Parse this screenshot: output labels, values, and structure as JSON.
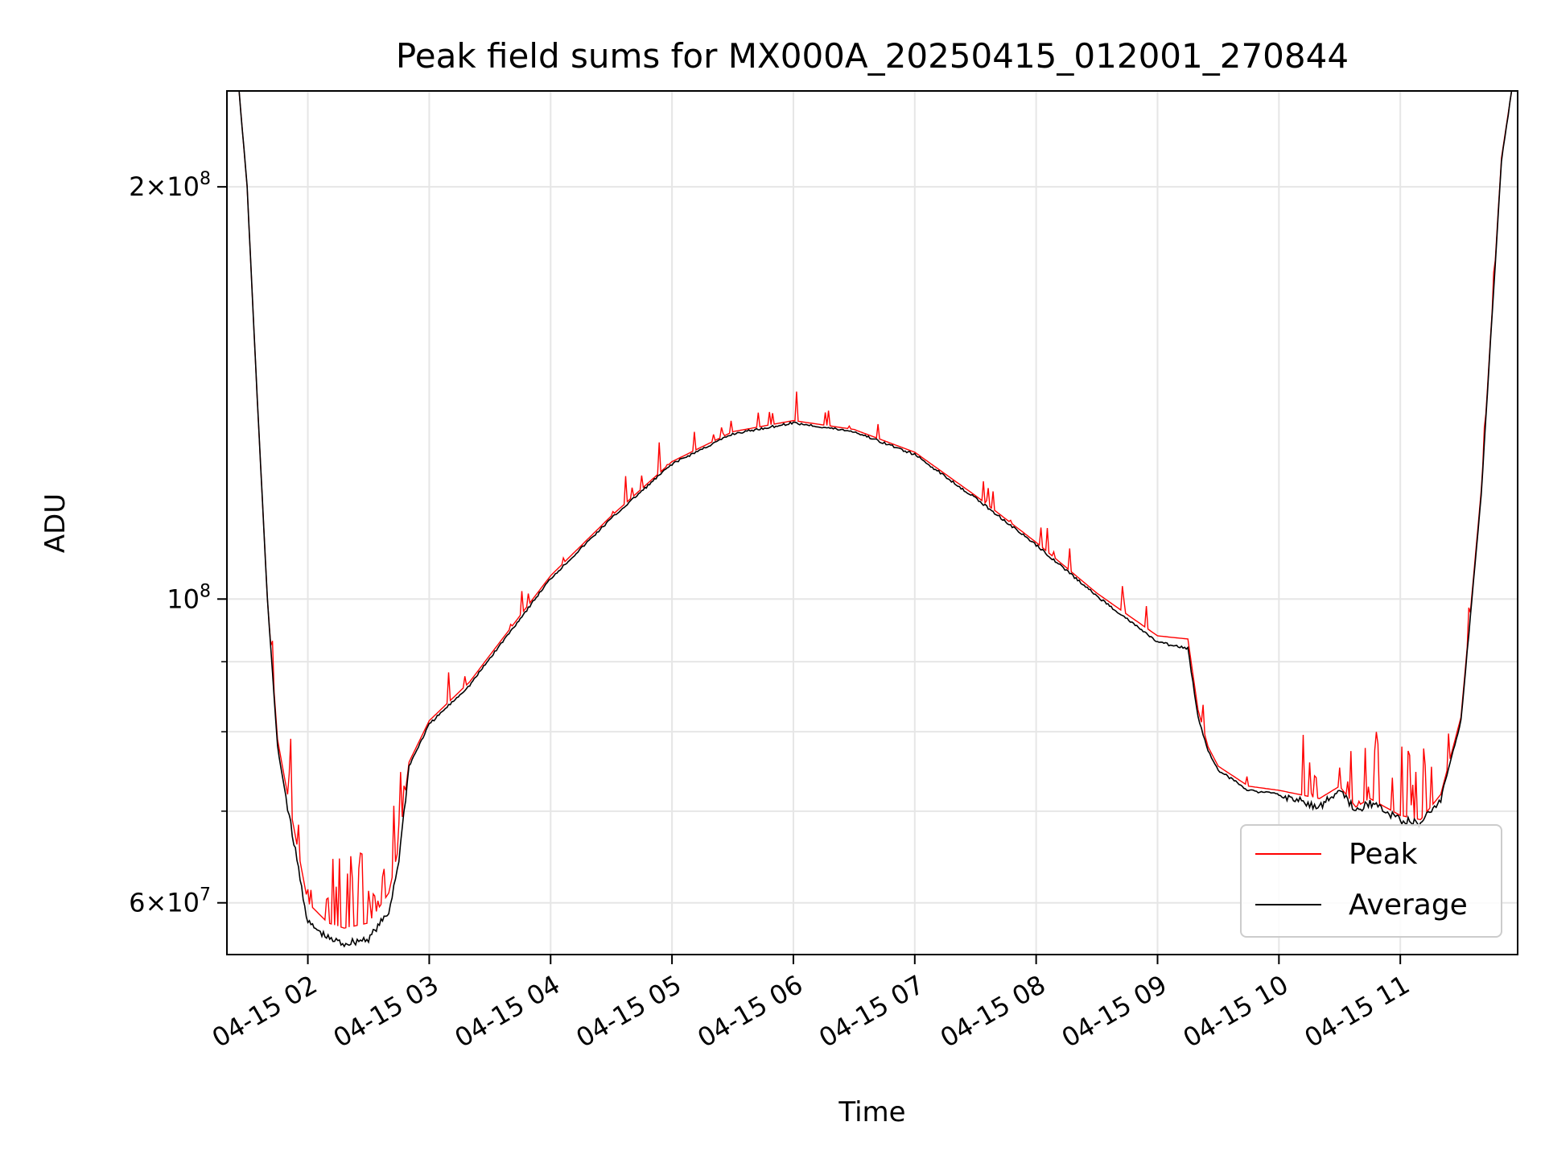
{
  "chart_data": {
    "type": "line",
    "title": "Peak field sums for MX000A_20250415_012001_270844",
    "xlabel": "Time",
    "ylabel": "ADU",
    "yscale": "log",
    "grid": true,
    "legend_position": "lower-right",
    "xlim": [
      "04-15 01:20",
      "04-15 11:58"
    ],
    "ylim": [
      55000000,
      235000000
    ],
    "x_ticks": [
      "04-15 02",
      "04-15 03",
      "04-15 04",
      "04-15 05",
      "04-15 06",
      "04-15 07",
      "04-15 08",
      "04-15 09",
      "04-15 10",
      "04-15 11"
    ],
    "y_tick_labels": [
      {
        "value": 200000000,
        "mantissa": "2",
        "exponent": "8"
      },
      {
        "value": 100000000,
        "mantissa": "",
        "exponent": "8"
      },
      {
        "value": 60000000,
        "mantissa": "6",
        "exponent": "7"
      }
    ],
    "y_minor_ticks": [
      70000000,
      80000000,
      90000000
    ],
    "series": [
      {
        "name": "Peak",
        "color": "#ff0000",
        "noise_note": "frequent upward spikes in low-signal regions",
        "x": [
          "04-15 01:26",
          "04-15 01:30",
          "04-15 01:35",
          "04-15 01:40",
          "04-15 01:45",
          "04-15 01:50",
          "04-15 02:00",
          "04-15 02:10",
          "04-15 02:18",
          "04-15 02:30",
          "04-15 02:40",
          "04-15 02:45",
          "04-15 02:50",
          "04-15 03:00",
          "04-15 03:20",
          "04-15 03:30",
          "04-15 04:00",
          "04-15 04:30",
          "04-15 05:00",
          "04-15 05:30",
          "04-15 06:00",
          "04-15 06:30",
          "04-15 07:00",
          "04-15 07:30",
          "04-15 08:00",
          "04-15 08:30",
          "04-15 09:00",
          "04-15 09:15",
          "04-15 09:20",
          "04-15 09:25",
          "04-15 09:30",
          "04-15 09:45",
          "04-15 10:00",
          "04-15 10:20",
          "04-15 10:30",
          "04-15 10:38",
          "04-15 10:45",
          "04-15 11:00",
          "04-15 11:10",
          "04-15 11:20",
          "04-15 11:30",
          "04-15 11:40",
          "04-15 11:50",
          "04-15 11:55"
        ],
        "values": [
          235000000,
          200000000,
          140000000,
          100000000,
          79000000,
          72000000,
          60000000,
          58000000,
          57500000,
          58000000,
          61000000,
          66000000,
          76000000,
          81500000,
          87000000,
          91000000,
          104000000,
          115000000,
          126000000,
          132500000,
          135000000,
          133000000,
          128000000,
          119000000,
          110000000,
          101000000,
          94000000,
          93500000,
          83000000,
          78000000,
          75500000,
          73000000,
          72500000,
          71500000,
          73000000,
          70500000,
          71500000,
          69500000,
          69000000,
          72000000,
          82000000,
          120000000,
          210000000,
          235000000
        ]
      },
      {
        "name": "Average",
        "color": "#000000",
        "x": [
          "04-15 01:26",
          "04-15 01:30",
          "04-15 01:35",
          "04-15 01:40",
          "04-15 01:45",
          "04-15 01:50",
          "04-15 02:00",
          "04-15 02:10",
          "04-15 02:18",
          "04-15 02:30",
          "04-15 02:40",
          "04-15 02:45",
          "04-15 02:50",
          "04-15 03:00",
          "04-15 03:20",
          "04-15 03:30",
          "04-15 04:00",
          "04-15 04:30",
          "04-15 05:00",
          "04-15 05:30",
          "04-15 06:00",
          "04-15 06:30",
          "04-15 07:00",
          "04-15 07:30",
          "04-15 08:00",
          "04-15 08:30",
          "04-15 09:00",
          "04-15 09:15",
          "04-15 09:20",
          "04-15 09:25",
          "04-15 09:30",
          "04-15 09:45",
          "04-15 10:00",
          "04-15 10:20",
          "04-15 10:30",
          "04-15 10:38",
          "04-15 10:45",
          "04-15 11:00",
          "04-15 11:10",
          "04-15 11:20",
          "04-15 11:30",
          "04-15 11:40",
          "04-15 11:50",
          "04-15 11:55"
        ],
        "values": [
          235000000,
          200000000,
          140000000,
          100000000,
          78000000,
          70500000,
          58000000,
          56500000,
          56000000,
          56500000,
          59000000,
          64500000,
          75500000,
          81000000,
          86500000,
          90500000,
          103500000,
          114500000,
          125500000,
          132000000,
          134500000,
          132500000,
          127500000,
          118500000,
          109500000,
          100500000,
          93000000,
          92000000,
          82000000,
          77500000,
          75000000,
          72500000,
          72000000,
          70500000,
          72500000,
          70000000,
          71000000,
          69000000,
          68500000,
          71500000,
          81500000,
          119000000,
          209000000,
          235000000
        ]
      }
    ]
  }
}
